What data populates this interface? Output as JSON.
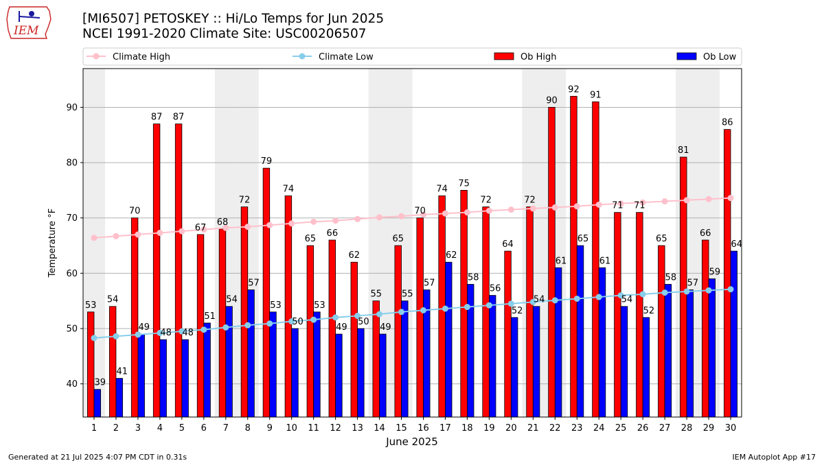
{
  "header": {
    "title_line1": "[MI6507] PETOSKEY :: Hi/Lo Temps for Jun 2025",
    "title_line2": "NCEI 1991-2020 Climate Site: USC00206507",
    "logo_text": "IEM"
  },
  "footer": {
    "generated": "Generated at 21 Jul 2025 4:07 PM CDT in 0.31s",
    "app": "IEM Autoplot App #17"
  },
  "colors": {
    "ob_high": "#ff0000",
    "ob_low": "#0000ff",
    "climate_high": "#ffc0cb",
    "climate_low": "#87ceeb",
    "weekend_band": "#eeeeee",
    "grid": "#b0b0b0"
  },
  "chart_data": {
    "type": "bar",
    "xlabel": "June 2025",
    "ylabel": "Temperature °F",
    "ylim": [
      34,
      97
    ],
    "yticks": [
      40,
      50,
      60,
      70,
      80,
      90
    ],
    "grid": "horizontal",
    "legend_position": "top",
    "categories": [
      "1",
      "2",
      "3",
      "4",
      "5",
      "6",
      "7",
      "8",
      "9",
      "10",
      "11",
      "12",
      "13",
      "14",
      "15",
      "16",
      "17",
      "18",
      "19",
      "20",
      "21",
      "22",
      "23",
      "24",
      "25",
      "26",
      "27",
      "28",
      "29",
      "30"
    ],
    "weekend_days": [
      1,
      7,
      8,
      14,
      15,
      21,
      22,
      28,
      29
    ],
    "series": [
      {
        "name": "Ob High",
        "kind": "bar",
        "values": [
          53,
          54,
          70,
          87,
          87,
          67,
          68,
          72,
          79,
          74,
          65,
          66,
          62,
          55,
          65,
          70,
          74,
          75,
          72,
          64,
          72,
          90,
          92,
          91,
          71,
          71,
          65,
          81,
          66,
          86
        ]
      },
      {
        "name": "Ob Low",
        "kind": "bar",
        "values": [
          39,
          41,
          49,
          48,
          48,
          51,
          54,
          57,
          53,
          50,
          53,
          49,
          50,
          49,
          55,
          57,
          62,
          58,
          56,
          52,
          54,
          61,
          65,
          61,
          54,
          52,
          58,
          57,
          59,
          64
        ]
      },
      {
        "name": "Climate High",
        "kind": "line",
        "values": [
          66.4,
          66.7,
          67.0,
          67.3,
          67.6,
          67.9,
          68.2,
          68.4,
          68.7,
          69.0,
          69.3,
          69.5,
          69.8,
          70.1,
          70.3,
          70.6,
          70.8,
          71.0,
          71.3,
          71.5,
          71.7,
          71.9,
          72.1,
          72.4,
          72.6,
          72.8,
          73.0,
          73.2,
          73.4,
          73.6
        ]
      },
      {
        "name": "Climate Low",
        "kind": "line",
        "values": [
          48.3,
          48.6,
          48.9,
          49.2,
          49.5,
          49.8,
          50.2,
          50.6,
          50.9,
          51.3,
          51.6,
          52.0,
          52.3,
          52.6,
          53.0,
          53.3,
          53.6,
          53.9,
          54.2,
          54.5,
          54.8,
          55.1,
          55.4,
          55.7,
          56.0,
          56.2,
          56.5,
          56.7,
          56.9,
          57.1
        ]
      }
    ]
  }
}
